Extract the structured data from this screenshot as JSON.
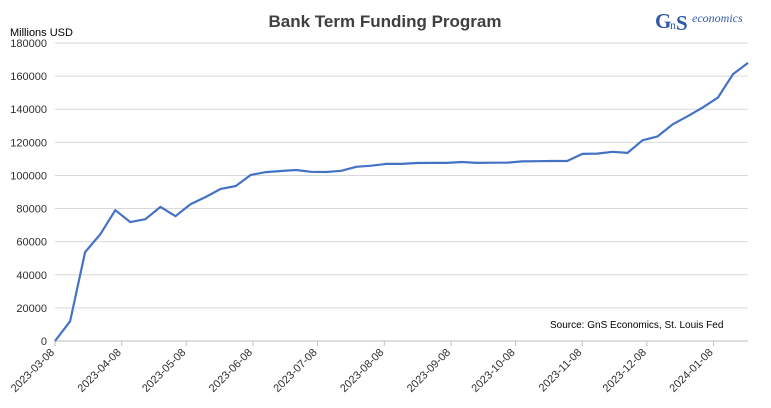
{
  "chart_data": {
    "type": "line",
    "title": "Bank Term Funding Program",
    "ylabel": "Millions USD",
    "xlabel": "",
    "ylim": [
      0,
      180000
    ],
    "yticks": [
      "0",
      "20000",
      "40000",
      "60000",
      "80000",
      "100000",
      "120000",
      "140000",
      "160000",
      "180000"
    ],
    "xticks": [
      "2023-03-08",
      "2023-04-08",
      "2023-05-08",
      "2023-06-08",
      "2023-07-08",
      "2023-08-08",
      "2023-09-08",
      "2023-10-08",
      "2023-11-08",
      "2023-12-08",
      "2024-01-08"
    ],
    "grid": true,
    "legend": "none",
    "source": "Source: GnS Economics, St. Louis Fed",
    "color": "#4472c4",
    "series": [
      {
        "x": [
          "2023-03-08",
          "2023-03-15",
          "2023-03-22",
          "2023-03-29",
          "2023-04-05",
          "2023-04-12",
          "2023-04-19",
          "2023-04-26",
          "2023-05-03",
          "2023-05-10",
          "2023-05-17",
          "2023-05-24",
          "2023-05-31",
          "2023-06-07",
          "2023-06-14",
          "2023-06-21",
          "2023-06-28",
          "2023-07-05",
          "2023-07-12",
          "2023-07-19",
          "2023-07-26",
          "2023-08-02",
          "2023-08-09",
          "2023-08-16",
          "2023-08-23",
          "2023-08-30",
          "2023-09-06",
          "2023-09-13",
          "2023-09-20",
          "2023-09-27",
          "2023-10-04",
          "2023-10-11",
          "2023-10-18",
          "2023-10-25",
          "2023-11-01",
          "2023-11-08",
          "2023-11-15",
          "2023-11-22",
          "2023-11-29",
          "2023-12-06",
          "2023-12-13",
          "2023-12-20",
          "2023-12-27",
          "2024-01-03",
          "2024-01-10",
          "2024-01-17",
          "2024-01-24"
        ],
        "values": [
          0,
          11900,
          53700,
          64400,
          79000,
          71800,
          73600,
          81000,
          75400,
          82700,
          87000,
          91900,
          93600,
          100300,
          102000,
          102700,
          103300,
          102200,
          102100,
          102800,
          105200,
          105900,
          107000,
          107000,
          107500,
          107600,
          107600,
          108100,
          107600,
          107700,
          107700,
          108500,
          108600,
          108700,
          108700,
          113000,
          113200,
          114300,
          113600,
          121200,
          123600,
          130900,
          135800,
          141100,
          147000,
          161100,
          168000
        ]
      }
    ]
  },
  "logo": {
    "g": "G",
    "n": "n",
    "s": "S",
    "text": "economics"
  }
}
